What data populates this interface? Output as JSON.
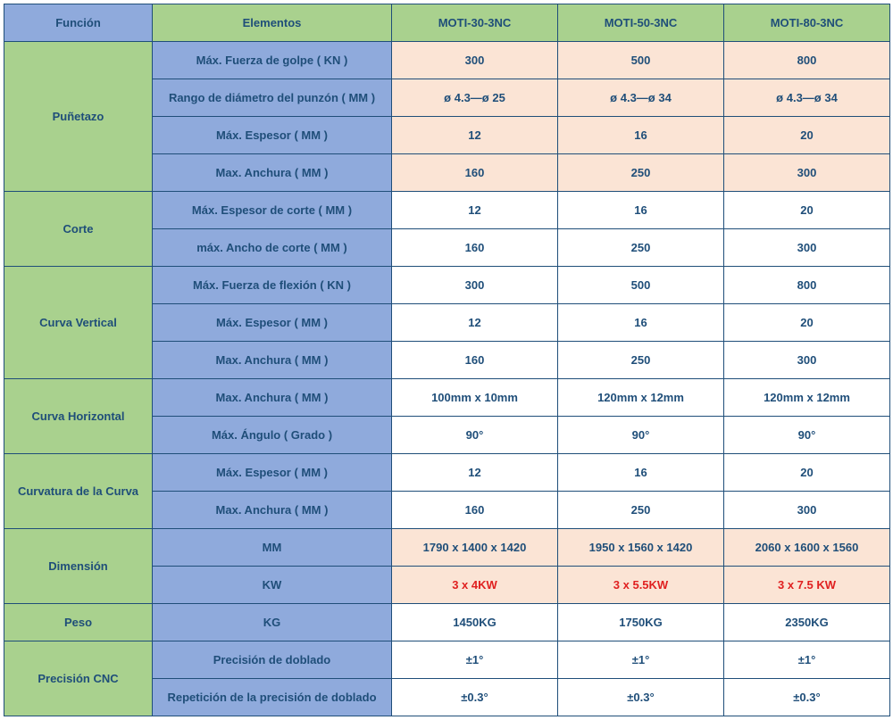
{
  "headers": {
    "funcion": "Función",
    "elementos": "Elementos",
    "m30": "MOTI-30-3NC",
    "m50": "MOTI-50-3NC",
    "m80": "MOTI-80-3NC"
  },
  "groups": [
    {
      "name": "Puñetazo",
      "pink": true,
      "rows": [
        {
          "label": "Máx. Fuerza de golpe ( KN )",
          "v": [
            "300",
            "500",
            "800"
          ]
        },
        {
          "label": "Rango de diámetro del punzón ( MM )",
          "v": [
            "ø 4.3—ø 25",
            "ø 4.3—ø 34",
            "ø 4.3—ø 34"
          ]
        },
        {
          "label": "Máx. Espesor ( MM )",
          "v": [
            "12",
            "16",
            "20"
          ]
        },
        {
          "label": "Max. Anchura ( MM )",
          "v": [
            "160",
            "250",
            "300"
          ]
        }
      ]
    },
    {
      "name": "Corte",
      "pink": false,
      "rows": [
        {
          "label": "Máx. Espesor de corte ( MM )",
          "v": [
            "12",
            "16",
            "20"
          ]
        },
        {
          "label": "máx. Ancho de corte ( MM )",
          "v": [
            "160",
            "250",
            "300"
          ]
        }
      ]
    },
    {
      "name": "Curva Vertical",
      "pink": false,
      "rows": [
        {
          "label": "Máx. Fuerza de flexión ( KN )",
          "v": [
            "300",
            "500",
            "800"
          ]
        },
        {
          "label": "Máx. Espesor ( MM )",
          "v": [
            "12",
            "16",
            "20"
          ]
        },
        {
          "label": "Max. Anchura ( MM )",
          "v": [
            "160",
            "250",
            "300"
          ]
        }
      ]
    },
    {
      "name": "Curva Horizontal",
      "pink": false,
      "rows": [
        {
          "label": "Max. Anchura ( MM )",
          "v": [
            "100mm x 10mm",
            "120mm x 12mm",
            "120mm x 12mm"
          ]
        },
        {
          "label": "Máx. Ángulo ( Grado )",
          "v": [
            "90°",
            "90°",
            "90°"
          ]
        }
      ]
    },
    {
      "name": "Curvatura de la Curva",
      "pink": false,
      "rows": [
        {
          "label": "Máx. Espesor ( MM )",
          "v": [
            "12",
            "16",
            "20"
          ]
        },
        {
          "label": "Max. Anchura ( MM )",
          "v": [
            "160",
            "250",
            "300"
          ]
        }
      ]
    },
    {
      "name": "Dimensión",
      "pink": true,
      "rows": [
        {
          "label": "MM",
          "v": [
            "1790 x 1400 x 1420",
            "1950 x 1560 x 1420",
            "2060 x 1600 x 1560"
          ]
        },
        {
          "label": "KW",
          "v": [
            "3 x 4KW",
            "3 x 5.5KW",
            "3 x 7.5 KW"
          ],
          "red": true
        }
      ]
    },
    {
      "name": "Peso",
      "pink": false,
      "rows": [
        {
          "label": "KG",
          "v": [
            "1450KG",
            "1750KG",
            "2350KG"
          ]
        }
      ]
    },
    {
      "name": "Precisión CNC",
      "pink": false,
      "rows": [
        {
          "label": "Precisión de doblado",
          "v": [
            "±1°",
            "±1°",
            "±1°"
          ]
        },
        {
          "label": "Repetición de la precisión de doblado",
          "v": [
            "±0.3°",
            "±0.3°",
            "±0.3°"
          ]
        }
      ]
    }
  ]
}
